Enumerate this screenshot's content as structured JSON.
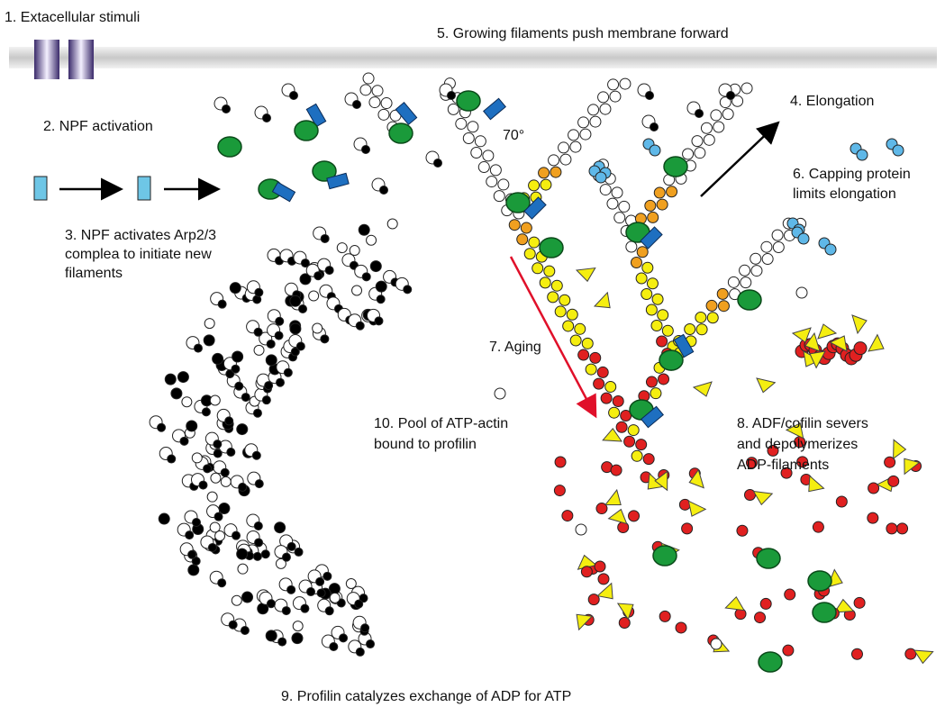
{
  "labels": {
    "stimuli": "1. Extacellular stimuli",
    "membrane": "5. Growing filaments push membrane forward",
    "npf_activation": "2. NPF activation",
    "arp_activation": [
      "3. NPF activates Arp2/3",
      "complea to initiate new",
      "filaments"
    ],
    "elongation": "4. Elongation",
    "angle": "70°",
    "capping": [
      "6. Capping protein",
      "limits elongation"
    ],
    "aging": "7. Aging",
    "cofilin": [
      "8. ADF/cofilin severs",
      "and depolymerizes",
      "ADP-filaments"
    ],
    "exchange": "9. Profilin catalyzes exchange of ADP for ATP",
    "pool": [
      "10. Pool of ATP-actin",
      "bound to profilin"
    ]
  }
}
